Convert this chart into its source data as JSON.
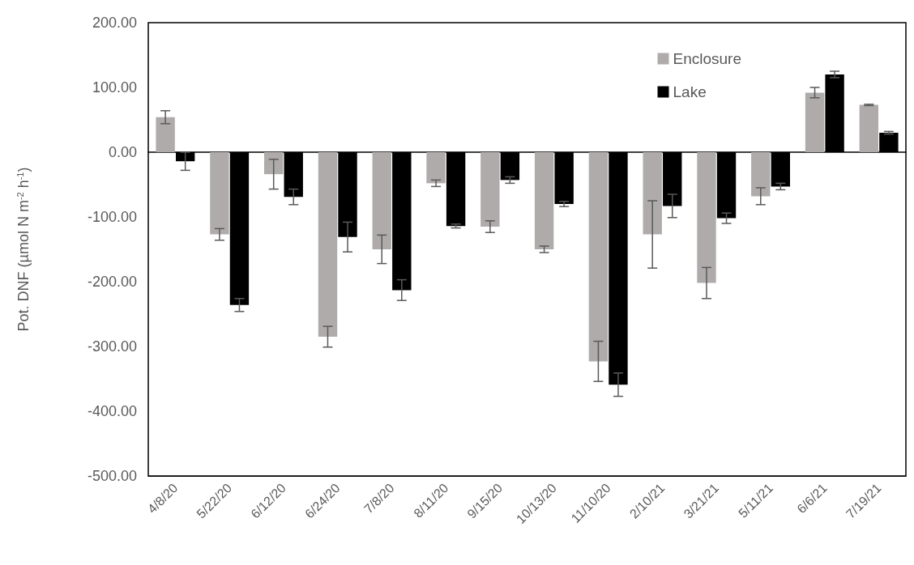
{
  "chart_data": {
    "type": "bar",
    "ylabel": "Pot. DNF (µmol N m$^{-2}$ h$^{-1}$)",
    "categories": [
      "4/8/20",
      "5/22/20",
      "6/12/20",
      "6/24/20",
      "7/8/20",
      "8/11/20",
      "9/15/20",
      "10/13/20",
      "11/10/20",
      "2/10/21",
      "3/21/21",
      "5/11/21",
      "6/6/21",
      "7/19/21"
    ],
    "series": [
      {
        "name": "Enclosure",
        "color": "#afabab",
        "values": [
          54,
          -127,
          -34,
          -285,
          -150,
          -48,
          -115,
          -150,
          -323,
          -127,
          -202,
          -68,
          92,
          73
        ],
        "errors": [
          10,
          9,
          23,
          16,
          22,
          5,
          9,
          5,
          31,
          52,
          24,
          13,
          8,
          1
        ]
      },
      {
        "name": "Lake",
        "color": "#000000",
        "values": [
          -14,
          -236,
          -69,
          -131,
          -213,
          -114,
          -43,
          -80,
          -359,
          -83,
          -102,
          -53,
          120,
          30
        ],
        "errors": [
          14,
          10,
          12,
          23,
          16,
          3,
          5,
          4,
          18,
          18,
          8,
          5,
          5,
          2
        ]
      }
    ],
    "ylim": [
      -500,
      200
    ],
    "yticks": [
      {
        "value": -500,
        "label": "-500.00"
      },
      {
        "value": -400,
        "label": "-400.00"
      },
      {
        "value": -300,
        "label": "-300.00"
      },
      {
        "value": -200,
        "label": "-200.00"
      },
      {
        "value": -100,
        "label": "-100.00"
      },
      {
        "value": 0,
        "label": "0.00"
      },
      {
        "value": 100,
        "label": "100.00"
      },
      {
        "value": 200,
        "label": "200.00"
      }
    ],
    "legend": "top right"
  }
}
